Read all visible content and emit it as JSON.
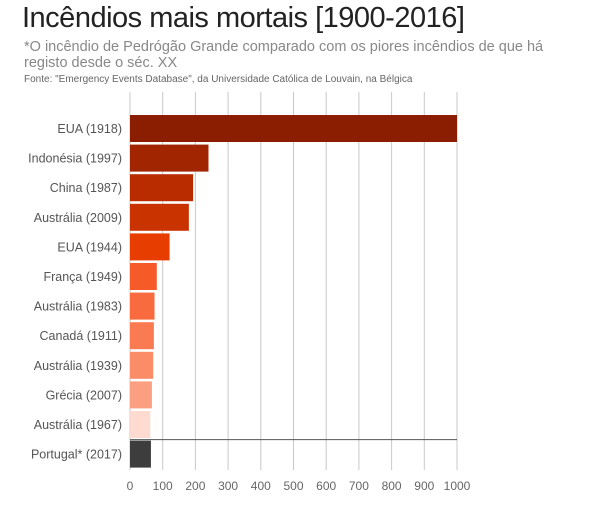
{
  "chart_data": {
    "type": "bar",
    "orientation": "horizontal",
    "title": "Incêndios mais mortais [1900-2016]",
    "subtitle": "*O incêndio de Pedrógão Grande comparado com os piores incêndios de que há registo desde o séc. XX",
    "source": "Fonte: \"Emergency Events Database\", da Universidade Católica de Louvain, na Bélgica",
    "categories": [
      "EUA (1918)",
      "Indonésia (1997)",
      "China (1987)",
      "Austrália (2009)",
      "EUA (1944)",
      "França (1949)",
      "Austrália (1983)",
      "Canadá (1911)",
      "Austrália (1939)",
      "Grécia (2007)",
      "Austrália (1967)",
      "Portugal* (2017)"
    ],
    "values": [
      1000,
      240,
      193,
      180,
      121,
      82,
      75,
      73,
      71,
      67,
      62,
      64
    ],
    "colors": [
      "#8b1e00",
      "#a02500",
      "#b82c00",
      "#c93300",
      "#e83d00",
      "#f55a28",
      "#f96a3e",
      "#fa7b52",
      "#fb8c68",
      "#fc9f81",
      "#fedad0",
      "#3d3d3d"
    ],
    "xlim": [
      0,
      1000
    ],
    "xticks": [
      "0",
      "100",
      "200",
      "300",
      "400",
      "500",
      "600",
      "700",
      "800",
      "900",
      "1000"
    ],
    "xlabel": "",
    "ylabel": "",
    "grid": true,
    "reference_value": 64
  }
}
